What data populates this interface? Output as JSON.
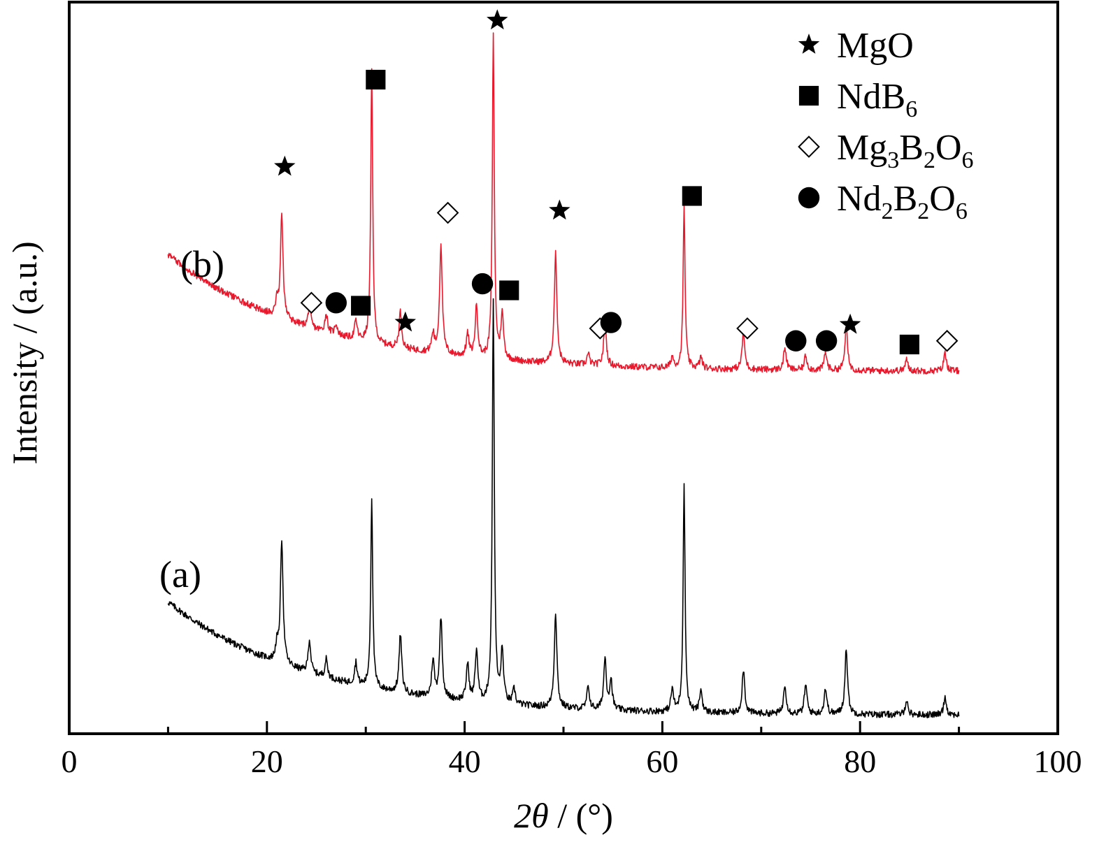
{
  "chart_data": {
    "type": "line",
    "title": "",
    "xlabel_parts": {
      "italic": "2θ",
      "rest": " / (°)"
    },
    "ylabel": "Intensity / (a.u.)",
    "xlim": [
      0,
      100
    ],
    "xticks": [
      0,
      20,
      40,
      60,
      80,
      100
    ],
    "xtick_labels": [
      "0",
      "20",
      "40",
      "60",
      "80",
      "100"
    ],
    "minor_xticks": [
      10,
      30,
      50,
      70,
      90
    ],
    "x_range_measured": [
      10,
      90
    ],
    "grid": false,
    "legend_position": "top-right",
    "legend": [
      {
        "marker": "star",
        "parts": [
          {
            "t": "MgO"
          }
        ]
      },
      {
        "marker": "square",
        "parts": [
          {
            "t": "NdB"
          },
          {
            "t": "6",
            "sub": true
          }
        ]
      },
      {
        "marker": "diamond",
        "parts": [
          {
            "t": "Mg"
          },
          {
            "t": "3",
            "sub": true
          },
          {
            "t": "B"
          },
          {
            "t": "2",
            "sub": true
          },
          {
            "t": "O"
          },
          {
            "t": "6",
            "sub": true
          }
        ]
      },
      {
        "marker": "circle",
        "parts": [
          {
            "t": "Nd"
          },
          {
            "t": "2",
            "sub": true
          },
          {
            "t": "B"
          },
          {
            "t": "2",
            "sub": true
          },
          {
            "t": "O"
          },
          {
            "t": "6",
            "sub": true
          }
        ]
      }
    ],
    "series": [
      {
        "name": "(a)",
        "color": "#000000",
        "baseline_start": 0.18,
        "baseline_end": 0.025,
        "peaks": [
          {
            "x": 21.0,
            "h": 0.02
          },
          {
            "x": 21.5,
            "h": 0.17
          },
          {
            "x": 24.3,
            "h": 0.045
          },
          {
            "x": 26.0,
            "h": 0.025
          },
          {
            "x": 29.0,
            "h": 0.03
          },
          {
            "x": 30.6,
            "h": 0.26
          },
          {
            "x": 33.5,
            "h": 0.08
          },
          {
            "x": 36.8,
            "h": 0.05
          },
          {
            "x": 37.6,
            "h": 0.11
          },
          {
            "x": 40.3,
            "h": 0.05
          },
          {
            "x": 41.2,
            "h": 0.07
          },
          {
            "x": 42.9,
            "h": 0.55
          },
          {
            "x": 43.8,
            "h": 0.07
          },
          {
            "x": 45.0,
            "h": 0.02
          },
          {
            "x": 49.2,
            "h": 0.13
          },
          {
            "x": 52.5,
            "h": 0.03
          },
          {
            "x": 54.2,
            "h": 0.07
          },
          {
            "x": 54.8,
            "h": 0.04
          },
          {
            "x": 61.0,
            "h": 0.03
          },
          {
            "x": 62.2,
            "h": 0.31
          },
          {
            "x": 63.9,
            "h": 0.03
          },
          {
            "x": 68.2,
            "h": 0.06
          },
          {
            "x": 72.4,
            "h": 0.04
          },
          {
            "x": 74.5,
            "h": 0.04
          },
          {
            "x": 76.5,
            "h": 0.035
          },
          {
            "x": 78.6,
            "h": 0.09
          },
          {
            "x": 84.7,
            "h": 0.02
          },
          {
            "x": 88.6,
            "h": 0.025
          }
        ]
      },
      {
        "name": "(b)",
        "color": "#e8192c",
        "baseline_start": 0.655,
        "baseline_end": 0.495,
        "peaks": [
          {
            "x": 21.0,
            "h": 0.02
          },
          {
            "x": 21.5,
            "h": 0.14
          },
          {
            "x": 24.3,
            "h": 0.03
          },
          {
            "x": 26.0,
            "h": 0.025
          },
          {
            "x": 27.0,
            "h": 0.015
          },
          {
            "x": 29.0,
            "h": 0.025
          },
          {
            "x": 30.6,
            "h": 0.37
          },
          {
            "x": 33.5,
            "h": 0.05
          },
          {
            "x": 36.8,
            "h": 0.025
          },
          {
            "x": 37.6,
            "h": 0.15
          },
          {
            "x": 40.3,
            "h": 0.03
          },
          {
            "x": 41.2,
            "h": 0.07
          },
          {
            "x": 42.9,
            "h": 0.44
          },
          {
            "x": 43.8,
            "h": 0.06
          },
          {
            "x": 49.2,
            "h": 0.15
          },
          {
            "x": 52.5,
            "h": 0.015
          },
          {
            "x": 54.2,
            "h": 0.06
          },
          {
            "x": 61.0,
            "h": 0.015
          },
          {
            "x": 62.2,
            "h": 0.22
          },
          {
            "x": 63.9,
            "h": 0.015
          },
          {
            "x": 68.2,
            "h": 0.05
          },
          {
            "x": 72.4,
            "h": 0.03
          },
          {
            "x": 74.5,
            "h": 0.02
          },
          {
            "x": 76.5,
            "h": 0.025
          },
          {
            "x": 78.6,
            "h": 0.06
          },
          {
            "x": 84.7,
            "h": 0.015
          },
          {
            "x": 88.6,
            "h": 0.025
          }
        ]
      }
    ],
    "phase_markers": [
      {
        "phase": "MgO",
        "marker": "star",
        "x": 21.8,
        "y": 0.775
      },
      {
        "phase": "MgO",
        "marker": "star",
        "x": 34.0,
        "y": 0.562
      },
      {
        "phase": "MgO",
        "marker": "star",
        "x": 43.3,
        "y": 0.975
      },
      {
        "phase": "MgO",
        "marker": "star",
        "x": 49.6,
        "y": 0.715
      },
      {
        "phase": "MgO",
        "marker": "star",
        "x": 79.0,
        "y": 0.559
      },
      {
        "phase": "NdB6",
        "marker": "square",
        "x": 31.0,
        "y": 0.894
      },
      {
        "phase": "NdB6",
        "marker": "square",
        "x": 29.5,
        "y": 0.585
      },
      {
        "phase": "NdB6",
        "marker": "square",
        "x": 44.5,
        "y": 0.606
      },
      {
        "phase": "NdB6",
        "marker": "square",
        "x": 63.0,
        "y": 0.735
      },
      {
        "phase": "NdB6",
        "marker": "square",
        "x": 85.0,
        "y": 0.532
      },
      {
        "phase": "Mg3B2O6",
        "marker": "diamond",
        "x": 24.5,
        "y": 0.589
      },
      {
        "phase": "Mg3B2O6",
        "marker": "diamond",
        "x": 38.3,
        "y": 0.712
      },
      {
        "phase": "Mg3B2O6",
        "marker": "diamond",
        "x": 53.7,
        "y": 0.554
      },
      {
        "phase": "Mg3B2O6",
        "marker": "diamond",
        "x": 68.6,
        "y": 0.554
      },
      {
        "phase": "Mg3B2O6",
        "marker": "diamond",
        "x": 88.8,
        "y": 0.537
      },
      {
        "phase": "Nd2B2O6",
        "marker": "circle",
        "x": 27.0,
        "y": 0.589
      },
      {
        "phase": "Nd2B2O6",
        "marker": "circle",
        "x": 41.8,
        "y": 0.615
      },
      {
        "phase": "Nd2B2O6",
        "marker": "circle",
        "x": 54.8,
        "y": 0.562
      },
      {
        "phase": "Nd2B2O6",
        "marker": "circle",
        "x": 73.5,
        "y": 0.537
      },
      {
        "phase": "Nd2B2O6",
        "marker": "circle",
        "x": 76.6,
        "y": 0.537
      }
    ]
  }
}
